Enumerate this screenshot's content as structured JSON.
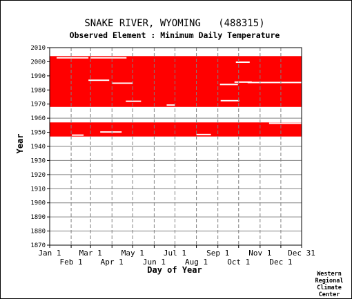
{
  "chart_data": {
    "type": "heatmap",
    "title": "SNAKE RIVER, WYOMING   (488315)",
    "subtitle": "Observed Element : Minimum Daily Temperature",
    "xlabel": "Day of Year",
    "ylabel": "Year",
    "ylim": [
      1870,
      2010
    ],
    "yticks": [
      1870,
      1880,
      1890,
      1900,
      1910,
      1920,
      1930,
      1940,
      1950,
      1960,
      1970,
      1980,
      1990,
      2000,
      2010
    ],
    "xlim": [
      1,
      365
    ],
    "x_ticks_top_row": [
      {
        "label": "Jan 1",
        "day": 1
      },
      {
        "label": "Mar 1",
        "day": 60
      },
      {
        "label": "May 1",
        "day": 121
      },
      {
        "label": "Jul 1",
        "day": 182
      },
      {
        "label": "Sep 1",
        "day": 244
      },
      {
        "label": "Nov 1",
        "day": 305
      },
      {
        "label": "Dec 31",
        "day": 365
      }
    ],
    "x_ticks_bottom_row": [
      {
        "label": "Feb 1",
        "day": 32
      },
      {
        "label": "Apr 1",
        "day": 91
      },
      {
        "label": "Jun 1",
        "day": 152
      },
      {
        "label": "Aug 1",
        "day": 213
      },
      {
        "label": "Oct 1",
        "day": 274
      },
      {
        "label": "Dec 1",
        "day": 335
      }
    ],
    "grid": true,
    "colors": {
      "observed": "#ff0000",
      "grid": "#808080"
    },
    "observed_year_ranges": [
      {
        "start_year": 1947,
        "end_year": 1957
      },
      {
        "start_year": 1968,
        "end_year": 2004
      }
    ],
    "gaps": [
      {
        "year": 2002.8,
        "day_start": 11,
        "day_end": 57
      },
      {
        "year": 2002.8,
        "day_start": 60,
        "day_end": 112
      },
      {
        "year": 1999.7,
        "day_start": 270,
        "day_end": 290
      },
      {
        "year": 1986.9,
        "day_start": 57,
        "day_end": 87
      },
      {
        "year": 1984.8,
        "day_start": 91,
        "day_end": 121
      },
      {
        "year": 1985.3,
        "day_start": 287,
        "day_end": 365
      },
      {
        "year": 1985.6,
        "day_start": 268,
        "day_end": 293
      },
      {
        "year": 1983.9,
        "day_start": 247,
        "day_end": 273
      },
      {
        "year": 1972.4,
        "day_start": 248,
        "day_end": 275
      },
      {
        "year": 1972.0,
        "day_start": 111,
        "day_end": 133
      },
      {
        "year": 1969.3,
        "day_start": 170,
        "day_end": 182
      },
      {
        "year": 1950.2,
        "day_start": 74,
        "day_end": 105
      },
      {
        "year": 1948.4,
        "day_start": 213,
        "day_end": 234
      },
      {
        "year": 1948.0,
        "day_start": 33,
        "day_end": 50
      },
      {
        "year": 1956.4,
        "day_start": 318,
        "day_end": 365
      }
    ]
  },
  "credit": [
    "Western",
    "Regional",
    "Climate",
    "Center"
  ]
}
